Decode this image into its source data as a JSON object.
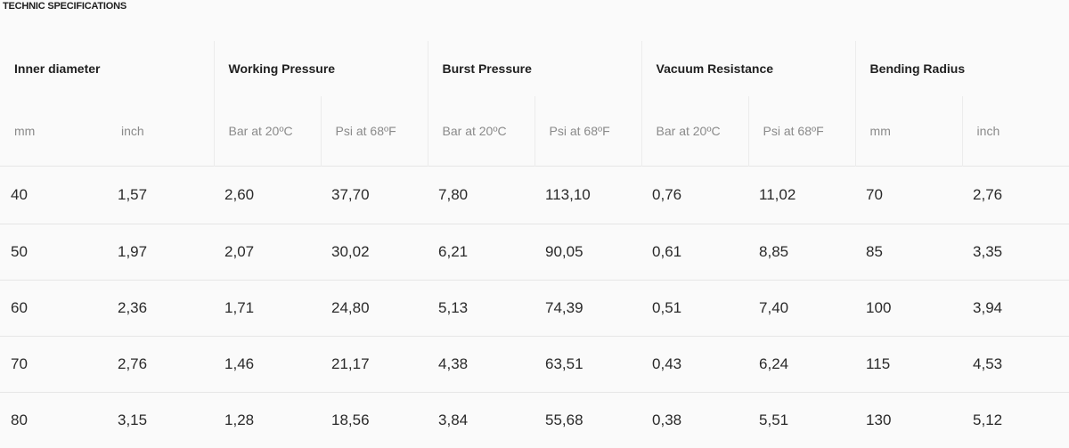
{
  "title": "TECHNIC SPECIFICATIONS",
  "groups": [
    {
      "label": "Inner diameter"
    },
    {
      "label": "Working Pressure"
    },
    {
      "label": "Burst Pressure"
    },
    {
      "label": "Vacuum Resistance"
    },
    {
      "label": "Bending Radius"
    }
  ],
  "units": [
    "mm",
    "inch",
    "Bar at 20ºC",
    "Psi at 68ºF",
    "Bar at 20ºC",
    "Psi at 68ºF",
    "Bar at 20ºC",
    "Psi at 68ºF",
    "mm",
    "inch"
  ],
  "rows": [
    [
      "40",
      "1,57",
      "2,60",
      "37,70",
      "7,80",
      "113,10",
      "0,76",
      "11,02",
      "70",
      "2,76"
    ],
    [
      "50",
      "1,97",
      "2,07",
      "30,02",
      "6,21",
      "90,05",
      "0,61",
      "8,85",
      "85",
      "3,35"
    ],
    [
      "60",
      "2,36",
      "1,71",
      "24,80",
      "5,13",
      "74,39",
      "0,51",
      "7,40",
      "100",
      "3,94"
    ],
    [
      "70",
      "2,76",
      "1,46",
      "21,17",
      "4,38",
      "63,51",
      "0,43",
      "6,24",
      "115",
      "4,53"
    ],
    [
      "80",
      "3,15",
      "1,28",
      "18,56",
      "3,84",
      "55,68",
      "0,38",
      "5,51",
      "130",
      "5,12"
    ]
  ]
}
